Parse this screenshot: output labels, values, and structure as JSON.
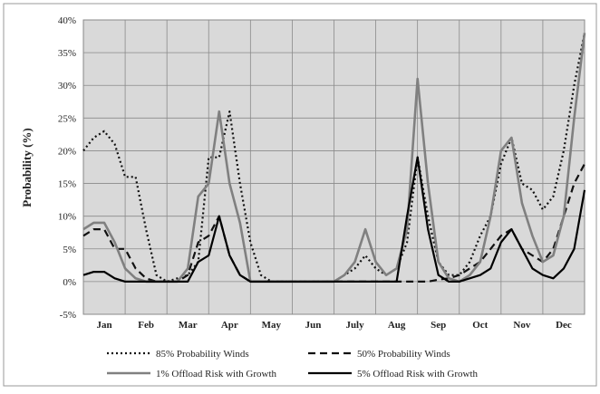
{
  "chart_data": {
    "type": "line",
    "y_label": "Probability (%)",
    "x_labels": [
      "Jan",
      "Feb",
      "Mar",
      "Apr",
      "May",
      "Jun",
      "July",
      "Aug",
      "Sep",
      "Oct",
      "Nov",
      "Dec"
    ],
    "ylim": [
      -5,
      40
    ],
    "yticks": [
      {
        "value": -5,
        "label": "-5%"
      },
      {
        "value": 0,
        "label": "0%"
      },
      {
        "value": 5,
        "label": "5%"
      },
      {
        "value": 10,
        "label": "10%"
      },
      {
        "value": 15,
        "label": "15%"
      },
      {
        "value": 20,
        "label": "20%"
      },
      {
        "value": 25,
        "label": "25%"
      },
      {
        "value": 30,
        "label": "30%"
      },
      {
        "value": 35,
        "label": "35%"
      },
      {
        "value": 40,
        "label": "40%"
      }
    ],
    "grid": true,
    "series": [
      {
        "name": "85% Probability Winds",
        "color": "#111111",
        "dash": "2,3",
        "width": 2.2,
        "values": [
          20,
          22,
          23,
          21,
          16,
          16,
          8,
          1,
          0,
          0.5,
          1,
          3,
          19,
          19,
          26,
          15,
          6,
          1,
          0,
          0,
          0,
          0,
          0,
          0,
          0,
          1,
          2,
          4,
          2,
          1,
          2,
          6,
          19,
          10,
          3,
          1,
          1,
          3,
          7,
          10,
          18,
          22,
          15,
          14,
          11,
          13,
          20,
          30,
          38
        ]
      },
      {
        "name": "50% Probability Winds",
        "color": "#111111",
        "dash": "8,5",
        "width": 2.2,
        "values": [
          7,
          8,
          8,
          5,
          5,
          2,
          0.5,
          0,
          0,
          0,
          1,
          6,
          7,
          10,
          4,
          1,
          0,
          0,
          0,
          0,
          0,
          0,
          0,
          0,
          0,
          0,
          0,
          0,
          0,
          0,
          0,
          0,
          0,
          0,
          0.3,
          0.5,
          1,
          2,
          3,
          5,
          7,
          8,
          5,
          4,
          3,
          5,
          10,
          15,
          18
        ]
      },
      {
        "name": "1% Offload Risk with Growth",
        "color": "#808080",
        "dash": "",
        "width": 2.6,
        "values": [
          8,
          9,
          9,
          6,
          2,
          0.5,
          0,
          0,
          0,
          0,
          2,
          13,
          15,
          26,
          15,
          9,
          0,
          0,
          0,
          0,
          0,
          0,
          0,
          0,
          0,
          1,
          3,
          8,
          3,
          1,
          2,
          8,
          31,
          15,
          3,
          0.5,
          0,
          1,
          3,
          10,
          20,
          22,
          12,
          7,
          3,
          4,
          10,
          25,
          38
        ]
      },
      {
        "name": "5% Offload Risk with Growth",
        "color": "#000000",
        "dash": "",
        "width": 2.2,
        "values": [
          1,
          1.5,
          1.5,
          0.5,
          0,
          0,
          0,
          0,
          0,
          0,
          0,
          3,
          4,
          10,
          4,
          1,
          0,
          0,
          0,
          0,
          0,
          0,
          0,
          0,
          0,
          0,
          0,
          0,
          0,
          0,
          0,
          10,
          19,
          8,
          1,
          0,
          0,
          0.5,
          1,
          2,
          6,
          8,
          5,
          2,
          1,
          0.5,
          2,
          5,
          14
        ]
      }
    ]
  }
}
